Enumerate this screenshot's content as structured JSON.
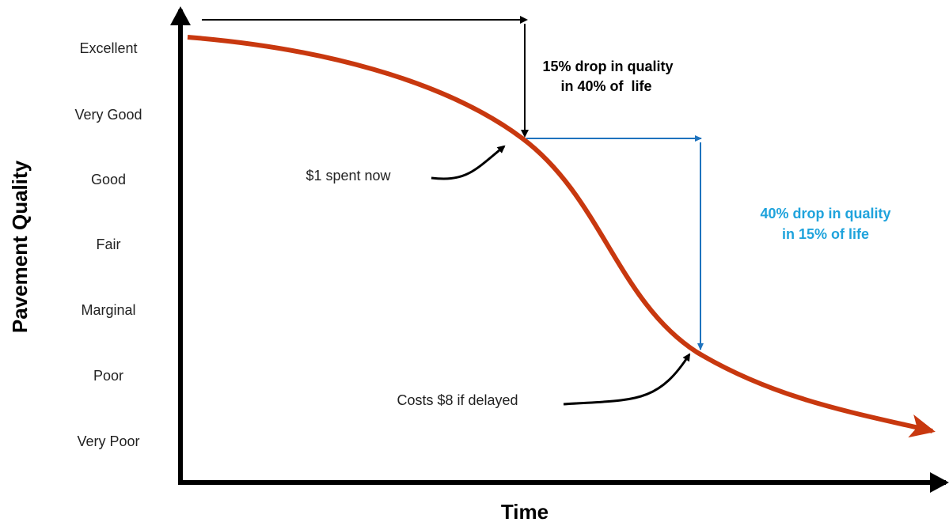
{
  "y_axis": {
    "title": "Pavement Quality",
    "levels": [
      "Excellent",
      "Very Good",
      "Good",
      "Fair",
      "Marginal",
      "Poor",
      "Very Poor"
    ]
  },
  "x_axis": {
    "title": "Time"
  },
  "annotations": {
    "early_drop": [
      "15% drop in quality",
      "in 40% of  life"
    ],
    "late_drop": [
      "40% drop in quality",
      "in 15% of life"
    ],
    "early_cost": "$1 spent now",
    "late_cost": "Costs $8 if delayed"
  }
}
